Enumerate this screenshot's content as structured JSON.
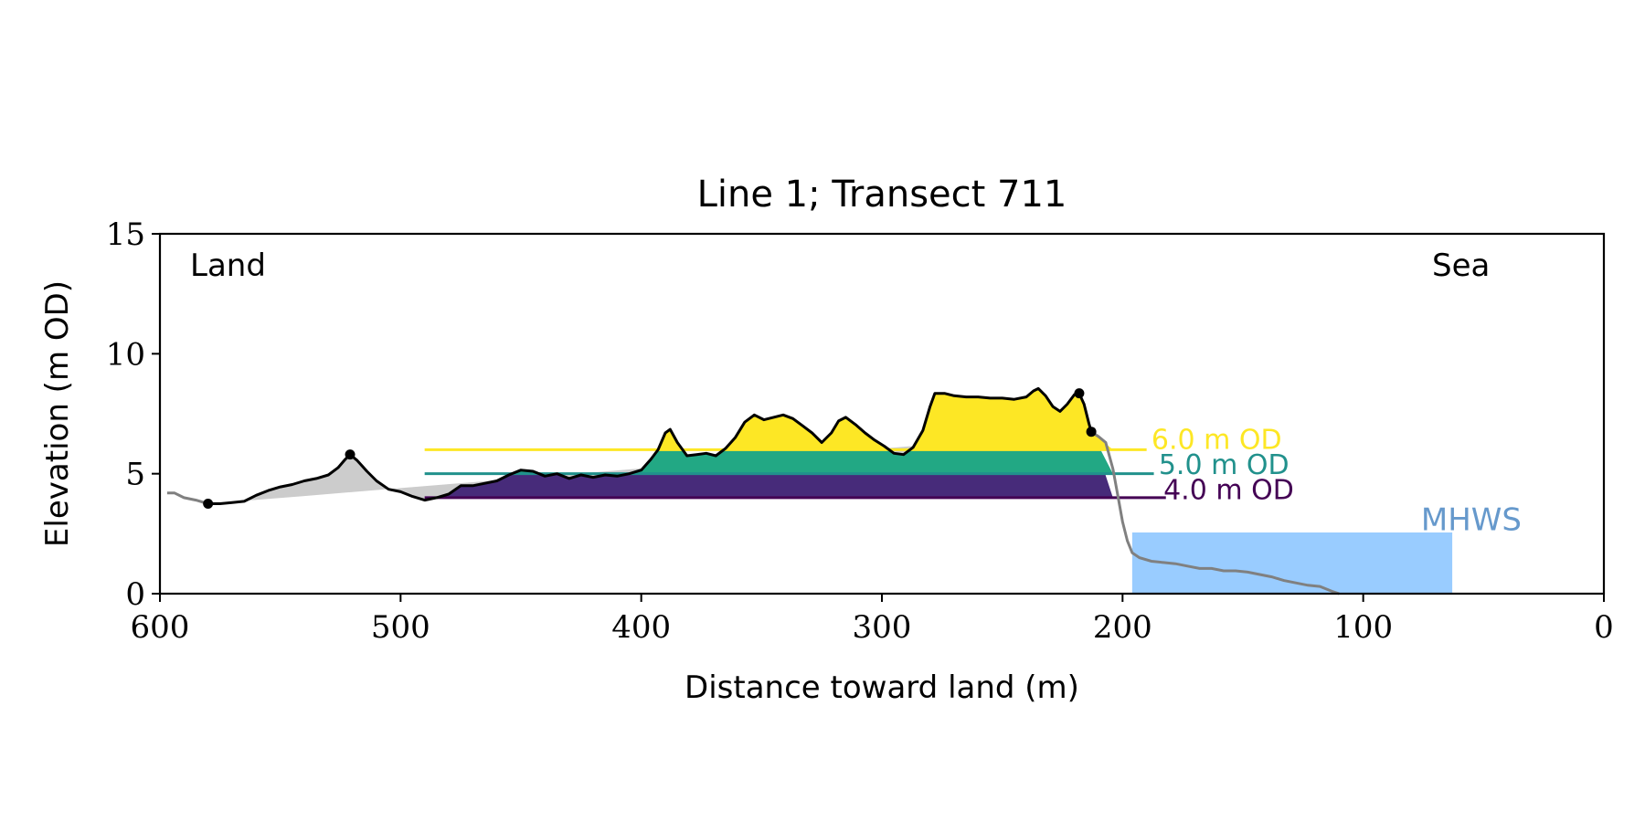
{
  "chart_data": {
    "type": "area",
    "title": "Line 1; Transect 711",
    "xlabel": "Distance toward land (m)",
    "ylabel": "Elevation (m OD)",
    "xlim": [
      600,
      0
    ],
    "ylim": [
      0,
      15
    ],
    "xticks": [
      600,
      500,
      400,
      300,
      200,
      100,
      0
    ],
    "yticks": [
      0,
      5,
      10,
      15
    ],
    "grid": false,
    "annotations": {
      "land": "Land",
      "sea": "Sea"
    },
    "mhws": {
      "label": "MHWS",
      "elevation": 2.55,
      "x_start": 196,
      "x_end": 63,
      "color": "#99ccff",
      "label_color": "#6699cc"
    },
    "levels": [
      {
        "label": "6.0 m OD",
        "elevation": 6.0,
        "color": "#fde725",
        "label_x": 188,
        "label_y": 6.5
      },
      {
        "label": "5.0 m OD",
        "elevation": 5.0,
        "color": "#21918c",
        "label_x": 185,
        "label_y": 5.45
      },
      {
        "label": "4.0 m OD",
        "elevation": 4.0,
        "color": "#440154",
        "label_x": 183,
        "label_y": 4.4
      }
    ],
    "fill_colors": {
      "above_6": "#fde725",
      "band_5_6": "#22a884",
      "band_4_5": "#472b7a",
      "baseline": "#cccccc"
    },
    "profile_color": "#000000",
    "extension_color": "#808080",
    "extension_land": [
      [
        597,
        4.2
      ],
      [
        594,
        4.2
      ],
      [
        590,
        4.0
      ],
      [
        585,
        3.9
      ],
      [
        580,
        3.75
      ]
    ],
    "profile": [
      [
        580,
        3.75
      ],
      [
        575,
        3.75
      ],
      [
        570,
        3.8
      ],
      [
        565,
        3.85
      ],
      [
        560,
        4.1
      ],
      [
        555,
        4.3
      ],
      [
        550,
        4.45
      ],
      [
        545,
        4.55
      ],
      [
        540,
        4.7
      ],
      [
        535,
        4.8
      ],
      [
        530,
        4.95
      ],
      [
        526,
        5.25
      ],
      [
        523,
        5.6
      ],
      [
        521,
        5.8
      ],
      [
        518,
        5.55
      ],
      [
        514,
        5.1
      ],
      [
        510,
        4.7
      ],
      [
        505,
        4.35
      ],
      [
        500,
        4.25
      ],
      [
        495,
        4.05
      ],
      [
        490,
        3.9
      ],
      [
        485,
        4.0
      ],
      [
        480,
        4.15
      ],
      [
        475,
        4.5
      ],
      [
        470,
        4.5
      ],
      [
        465,
        4.6
      ],
      [
        460,
        4.7
      ],
      [
        455,
        4.95
      ],
      [
        450,
        5.15
      ],
      [
        445,
        5.1
      ],
      [
        440,
        4.9
      ],
      [
        435,
        5.0
      ],
      [
        430,
        4.8
      ],
      [
        425,
        4.95
      ],
      [
        420,
        4.85
      ],
      [
        415,
        4.95
      ],
      [
        410,
        4.9
      ],
      [
        405,
        5.0
      ],
      [
        400,
        5.15
      ],
      [
        396,
        5.6
      ],
      [
        393,
        6.0
      ],
      [
        390,
        6.7
      ],
      [
        388,
        6.85
      ],
      [
        385,
        6.3
      ],
      [
        381,
        5.75
      ],
      [
        377,
        5.8
      ],
      [
        373,
        5.85
      ],
      [
        369,
        5.75
      ],
      [
        365,
        6.05
      ],
      [
        361,
        6.5
      ],
      [
        357,
        7.15
      ],
      [
        353,
        7.45
      ],
      [
        349,
        7.25
      ],
      [
        345,
        7.35
      ],
      [
        341,
        7.45
      ],
      [
        337,
        7.3
      ],
      [
        333,
        7.0
      ],
      [
        329,
        6.7
      ],
      [
        325,
        6.3
      ],
      [
        321,
        6.7
      ],
      [
        318,
        7.2
      ],
      [
        315,
        7.35
      ],
      [
        311,
        7.05
      ],
      [
        307,
        6.7
      ],
      [
        303,
        6.4
      ],
      [
        299,
        6.15
      ],
      [
        295,
        5.85
      ],
      [
        291,
        5.8
      ],
      [
        287,
        6.1
      ],
      [
        283,
        6.8
      ],
      [
        280,
        7.8
      ],
      [
        278,
        8.35
      ],
      [
        274,
        8.35
      ],
      [
        270,
        8.25
      ],
      [
        265,
        8.2
      ],
      [
        260,
        8.2
      ],
      [
        255,
        8.15
      ],
      [
        250,
        8.15
      ],
      [
        245,
        8.1
      ],
      [
        240,
        8.2
      ],
      [
        237,
        8.45
      ],
      [
        235,
        8.55
      ],
      [
        232,
        8.25
      ],
      [
        229,
        7.8
      ],
      [
        226,
        7.6
      ],
      [
        223,
        7.9
      ],
      [
        220,
        8.3
      ],
      [
        218,
        8.35
      ],
      [
        216,
        7.9
      ],
      [
        214,
        7.1
      ],
      [
        213,
        6.75
      ]
    ],
    "extension_sea": [
      [
        213,
        6.75
      ],
      [
        210,
        6.55
      ],
      [
        207,
        6.3
      ],
      [
        204,
        5.2
      ],
      [
        202,
        4.1
      ],
      [
        200,
        3.0
      ],
      [
        198,
        2.2
      ],
      [
        196,
        1.7
      ],
      [
        193,
        1.5
      ],
      [
        188,
        1.35
      ],
      [
        183,
        1.3
      ],
      [
        178,
        1.25
      ],
      [
        173,
        1.15
      ],
      [
        168,
        1.05
      ],
      [
        163,
        1.05
      ],
      [
        158,
        0.95
      ],
      [
        153,
        0.95
      ],
      [
        148,
        0.9
      ],
      [
        143,
        0.8
      ],
      [
        138,
        0.7
      ],
      [
        133,
        0.55
      ],
      [
        128,
        0.45
      ],
      [
        123,
        0.35
      ],
      [
        118,
        0.3
      ],
      [
        113,
        0.1
      ],
      [
        110,
        0.0
      ]
    ],
    "markers": [
      [
        580,
        3.75
      ],
      [
        521,
        5.8
      ],
      [
        218,
        8.35
      ],
      [
        213,
        6.75
      ]
    ],
    "baseline_polygon": [
      [
        580,
        3.75
      ],
      [
        540,
        4.07
      ],
      [
        500,
        4.4
      ],
      [
        460,
        4.73
      ],
      [
        400,
        5.22
      ],
      [
        340,
        5.72
      ],
      [
        300,
        6.05
      ],
      [
        213,
        6.75
      ]
    ]
  }
}
